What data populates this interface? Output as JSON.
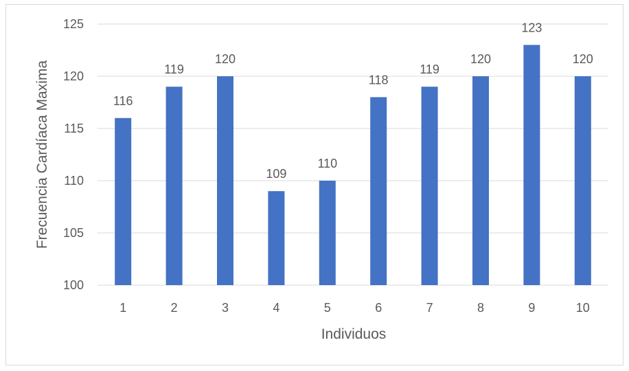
{
  "chart_data": {
    "type": "bar",
    "categories": [
      "1",
      "2",
      "3",
      "4",
      "5",
      "6",
      "7",
      "8",
      "9",
      "10"
    ],
    "values": [
      116,
      119,
      120,
      109,
      110,
      118,
      119,
      120,
      123,
      120
    ],
    "data_labels": [
      "116",
      "119",
      "120",
      "109",
      "110",
      "118",
      "119",
      "120",
      "123",
      "120"
    ],
    "xlabel": "Individuos",
    "ylabel": "Frecuencia Cardíaca Maxima",
    "ylim": [
      100,
      125
    ],
    "yticks": [
      100,
      105,
      110,
      115,
      120,
      125
    ],
    "ytick_labels": [
      "100",
      "105",
      "110",
      "115",
      "120",
      "125"
    ],
    "grid": true,
    "legend": "none",
    "colors": {
      "bar": "#4472c4",
      "grid": "#d9d9d9",
      "text": "#595959"
    }
  }
}
